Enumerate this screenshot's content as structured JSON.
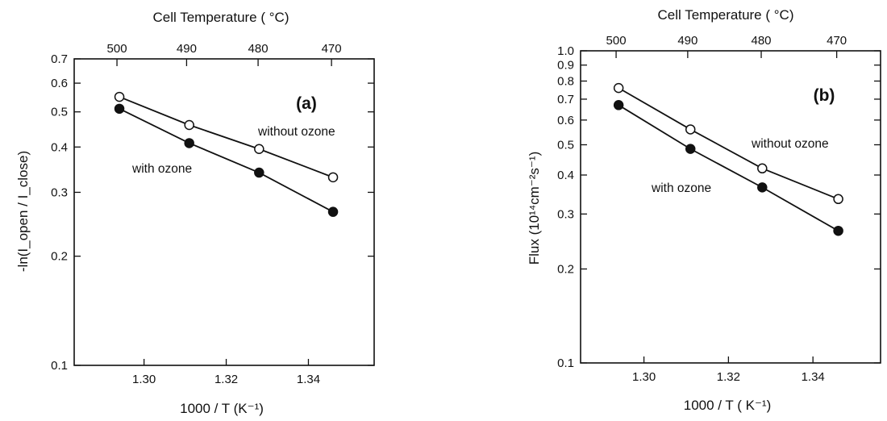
{
  "chart_data": [
    {
      "type": "line",
      "panel_label": "(a)",
      "ylabel": "-ln(I_open / I_close)",
      "xlabel": "1000 / T (K⁻¹)",
      "top_xlabel": "Cell Temperature ( °C)",
      "yscale": "log",
      "ylim": [
        0.1,
        0.7
      ],
      "xlim": [
        1.283,
        1.356
      ],
      "x_ticks": [
        1.3,
        1.32,
        1.34
      ],
      "x_tick_labels": [
        "1.30",
        "1.32",
        "1.34"
      ],
      "y_ticks": [
        0.1,
        0.2,
        0.3,
        0.4,
        0.5,
        0.6,
        0.7
      ],
      "y_tick_labels": [
        "0.1",
        "0.2",
        "0.3",
        "0.4",
        "0.5",
        "0.6",
        "0.7"
      ],
      "top_ticks_celsius": [
        500,
        490,
        480,
        470
      ],
      "top_tick_labels": [
        "500",
        "490",
        "480",
        "470"
      ],
      "series": [
        {
          "name": "without ozone",
          "marker": "open",
          "x": [
            1.294,
            1.311,
            1.328,
            1.346
          ],
          "values": [
            0.55,
            0.46,
            0.395,
            0.33
          ]
        },
        {
          "name": "with ozone",
          "marker": "filled",
          "x": [
            1.294,
            1.311,
            1.328,
            1.346
          ],
          "values": [
            0.51,
            0.41,
            0.34,
            0.265
          ]
        }
      ]
    },
    {
      "type": "line",
      "panel_label": "(b)",
      "ylabel": "Flux (10¹⁴cm⁻²s⁻¹)",
      "xlabel": "1000 / T ( K⁻¹)",
      "top_xlabel": "Cell Temperature ( °C)",
      "yscale": "log",
      "ylim": [
        0.1,
        1.0
      ],
      "xlim": [
        1.285,
        1.356
      ],
      "x_ticks": [
        1.3,
        1.32,
        1.34
      ],
      "x_tick_labels": [
        "1.30",
        "1.32",
        "1.34"
      ],
      "y_ticks": [
        0.1,
        0.2,
        0.3,
        0.4,
        0.5,
        0.6,
        0.7,
        0.8,
        0.9,
        1.0
      ],
      "y_tick_labels": [
        "0.1",
        "0.2",
        "0.3",
        "0.4",
        "0.5",
        "0.6",
        "0.7",
        "0.8",
        "0.9",
        "1.0"
      ],
      "top_ticks_celsius": [
        500,
        490,
        480,
        470
      ],
      "top_tick_labels": [
        "500",
        "490",
        "480",
        "470"
      ],
      "series": [
        {
          "name": "without ozone",
          "marker": "open",
          "x": [
            1.294,
            1.311,
            1.328,
            1.346
          ],
          "values": [
            0.76,
            0.56,
            0.42,
            0.335
          ]
        },
        {
          "name": "with ozone",
          "marker": "filled",
          "x": [
            1.294,
            1.311,
            1.328,
            1.346
          ],
          "values": [
            0.67,
            0.485,
            0.365,
            0.265
          ]
        }
      ]
    }
  ]
}
